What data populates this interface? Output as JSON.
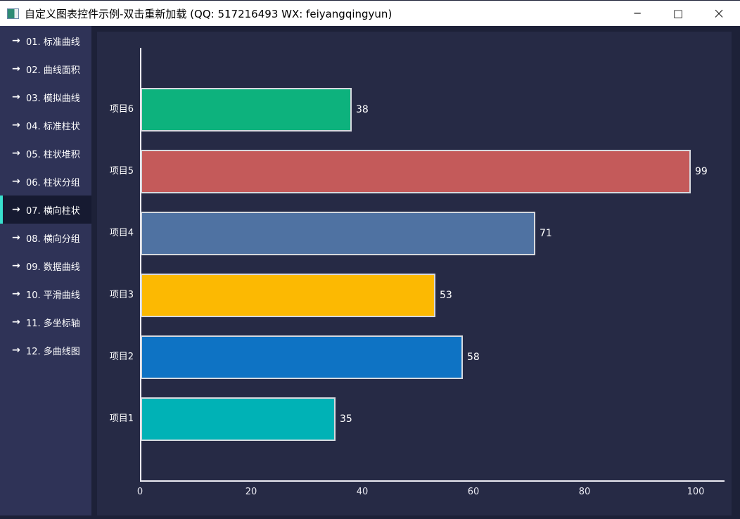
{
  "titlebar": {
    "app_icon": "chart-window-icon",
    "title": "自定义图表控件示例-双击重新加载 (QQ: 517216493 WX: feiyangqingyun)",
    "minimize_glyph": "─",
    "maximize_glyph": "□",
    "close_glyph": "×"
  },
  "sidebar": {
    "items": [
      {
        "label": "01. 标准曲线",
        "selected": false
      },
      {
        "label": "02. 曲线面积",
        "selected": false
      },
      {
        "label": "03. 模拟曲线",
        "selected": false
      },
      {
        "label": "04. 标准柱状",
        "selected": false
      },
      {
        "label": "05. 柱状堆积",
        "selected": false
      },
      {
        "label": "06. 柱状分组",
        "selected": false
      },
      {
        "label": "07. 横向柱状",
        "selected": true
      },
      {
        "label": "08. 横向分组",
        "selected": false
      },
      {
        "label": "09. 数据曲线",
        "selected": false
      },
      {
        "label": "10. 平滑曲线",
        "selected": false
      },
      {
        "label": "11. 多坐标轴",
        "selected": false
      },
      {
        "label": "12. 多曲线图",
        "selected": false
      }
    ],
    "arrow_icon": "arrow-right-icon",
    "arrow_glyph": "→"
  },
  "chart_data": {
    "type": "bar",
    "orientation": "horizontal",
    "title": "",
    "xlabel": "",
    "ylabel": "",
    "categories": [
      "项目1",
      "项目2",
      "项目3",
      "项目4",
      "项目5",
      "项目6"
    ],
    "values": [
      35,
      58,
      53,
      71,
      99,
      38
    ],
    "bar_colors": [
      "#00b2b6",
      "#0e73c4",
      "#fcb902",
      "#4f72a2",
      "#c45a5a",
      "#0db27d"
    ],
    "value_labels": [
      "35",
      "58",
      "53",
      "71",
      "99",
      "38"
    ],
    "xlim": [
      0,
      100
    ],
    "x_ticks": [
      0,
      20,
      40,
      60,
      80,
      100
    ],
    "grid": false,
    "legend": false
  },
  "colors": {
    "accent_cyan": "#38dfcd",
    "sidebar_bg": "#2f3357",
    "sidebar_selected_bg": "#161a31",
    "chart_bg": "#262a45",
    "frame_bg": "#1d2138",
    "titlebar_bg": "#ffffff",
    "axis": "#ecebf3",
    "bar_border": "#d6d9de",
    "text_light": "#ffffff"
  }
}
